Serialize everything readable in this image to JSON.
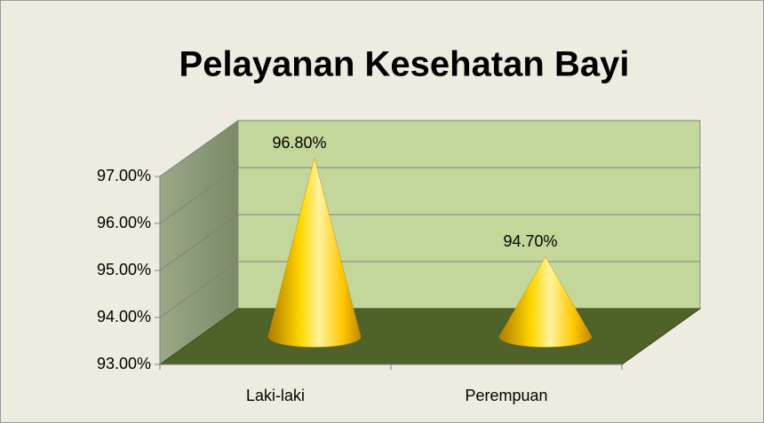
{
  "chart_data": {
    "type": "cone",
    "title": "Pelayanan Kesehatan Bayi",
    "categories": [
      "Laki-laki",
      "Perempuan"
    ],
    "values": [
      96.8,
      94.7
    ],
    "value_labels": [
      "96.80%",
      "94.70%"
    ],
    "color": "#ffcc00",
    "ylim": [
      93,
      97
    ],
    "yticks": [
      {
        "value": 93,
        "label": "93.00%"
      },
      {
        "value": 94,
        "label": "94.00%"
      },
      {
        "value": 95,
        "label": "95.00%"
      },
      {
        "value": 96,
        "label": "96.00%"
      },
      {
        "value": 97,
        "label": "97.00%"
      }
    ],
    "grid": true
  }
}
